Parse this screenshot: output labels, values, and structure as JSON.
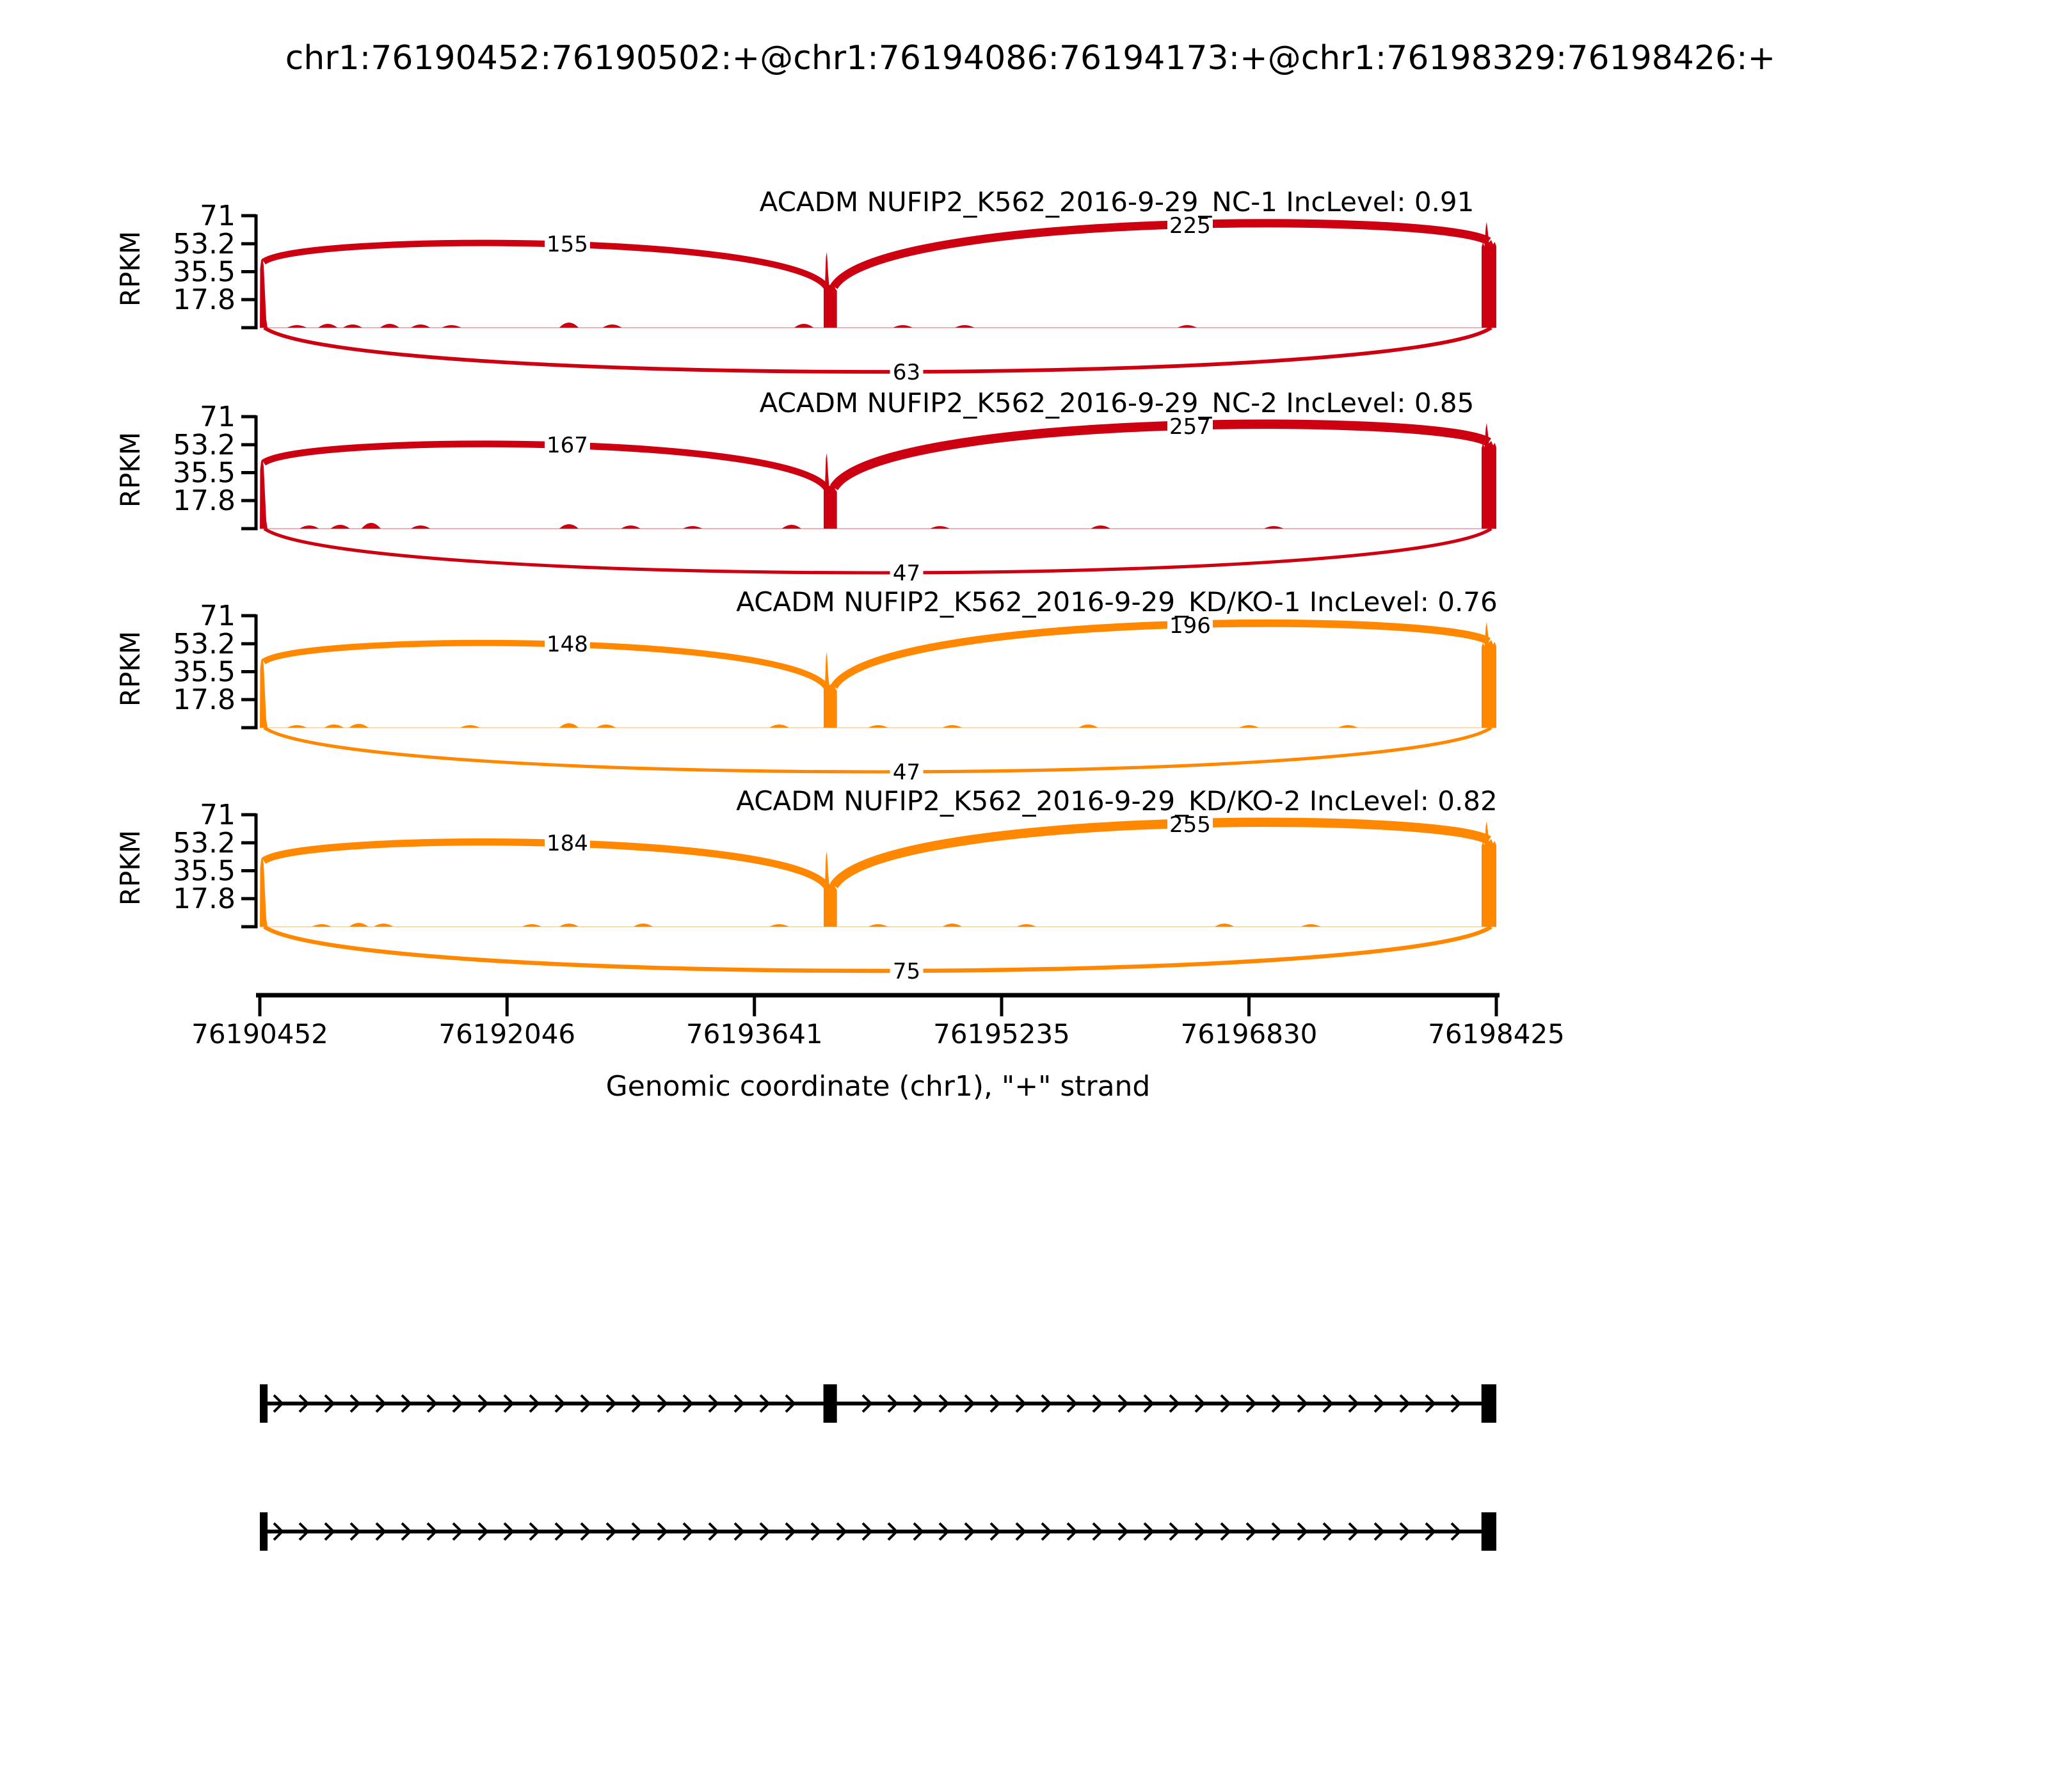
{
  "title": "chr1:76190452:76190502:+@chr1:76194086:76194173:+@chr1:76198329:76198426:+",
  "chart_data": {
    "type": "area",
    "subtype": "sashimi-splice-junction-plot",
    "title": "chr1:76190452:76190502:+@chr1:76194086:76194173:+@chr1:76198329:76198426:+",
    "ylabel": "RPKM",
    "xlabel": "Genomic coordinate (chr1), \"+\" strand",
    "y_ticks": [
      "71",
      "53.2",
      "35.5",
      "17.8"
    ],
    "y_max": 71,
    "x_ticks": [
      76190452,
      76192046,
      76193641,
      76195235,
      76196830,
      76198425
    ],
    "region": {
      "chrom": "chr1",
      "strand": "+",
      "start": 76190452,
      "end": 76198425
    },
    "exons": [
      [
        76190452,
        76190502
      ],
      [
        76194086,
        76194173
      ],
      [
        76198329,
        76198426
      ]
    ],
    "colors": {
      "NC": "#CC0011",
      "KD/KO": "#FF8800"
    },
    "tracks": [
      {
        "label": "ACADM NUFIP2_K562_2016-9-29_NC-1 IncLevel: 0.91",
        "group": "NC",
        "inc_level": 0.91,
        "color": "#CC0011",
        "junctions": [
          {
            "count": 155,
            "from_exon": 0,
            "to_exon": 1,
            "side": "top",
            "arc_peak_rpkm": 53.2
          },
          {
            "count": 225,
            "from_exon": 1,
            "to_exon": 2,
            "side": "top",
            "arc_peak_rpkm": 65
          },
          {
            "count": 63,
            "from_exon": 0,
            "to_exon": 2,
            "side": "bottom",
            "arc_peak_rpkm": -28
          }
        ],
        "coverage": {
          "blocks": [
            44,
            27,
            54
          ],
          "spikes": [
            44,
            48,
            67
          ]
        },
        "noise": [
          [
            0.03,
            4
          ],
          [
            0.055,
            6
          ],
          [
            0.075,
            5
          ],
          [
            0.105,
            6
          ],
          [
            0.13,
            5
          ],
          [
            0.155,
            4
          ],
          [
            0.25,
            8
          ],
          [
            0.285,
            5
          ],
          [
            0.44,
            6
          ],
          [
            0.52,
            4
          ],
          [
            0.57,
            4
          ],
          [
            0.75,
            4
          ]
        ]
      },
      {
        "label": "ACADM NUFIP2_K562_2016-9-29_NC-2 IncLevel: 0.85",
        "group": "NC",
        "inc_level": 0.85,
        "color": "#CC0011",
        "junctions": [
          {
            "count": 167,
            "from_exon": 0,
            "to_exon": 1,
            "side": "top",
            "arc_peak_rpkm": 53.2
          },
          {
            "count": 257,
            "from_exon": 1,
            "to_exon": 2,
            "side": "top",
            "arc_peak_rpkm": 65
          },
          {
            "count": 47,
            "from_exon": 0,
            "to_exon": 2,
            "side": "bottom",
            "arc_peak_rpkm": -28
          }
        ],
        "coverage": {
          "blocks": [
            44,
            27,
            54
          ],
          "spikes": [
            44,
            48,
            67
          ]
        },
        "noise": [
          [
            0.04,
            5
          ],
          [
            0.065,
            6
          ],
          [
            0.09,
            9
          ],
          [
            0.13,
            5
          ],
          [
            0.25,
            7
          ],
          [
            0.3,
            5
          ],
          [
            0.35,
            4
          ],
          [
            0.43,
            6
          ],
          [
            0.55,
            4
          ],
          [
            0.68,
            5
          ],
          [
            0.82,
            4
          ]
        ]
      },
      {
        "label": "ACADM NUFIP2_K562_2016-9-29_KD/KO-1 IncLevel: 0.76",
        "group": "KD/KO",
        "inc_level": 0.76,
        "color": "#FF8800",
        "junctions": [
          {
            "count": 148,
            "from_exon": 0,
            "to_exon": 1,
            "side": "top",
            "arc_peak_rpkm": 53.2
          },
          {
            "count": 196,
            "from_exon": 1,
            "to_exon": 2,
            "side": "top",
            "arc_peak_rpkm": 65
          },
          {
            "count": 47,
            "from_exon": 0,
            "to_exon": 2,
            "side": "bottom",
            "arc_peak_rpkm": -28
          }
        ],
        "coverage": {
          "blocks": [
            44,
            27,
            54
          ],
          "spikes": [
            44,
            48,
            67
          ]
        },
        "noise": [
          [
            0.03,
            4
          ],
          [
            0.06,
            5
          ],
          [
            0.08,
            6
          ],
          [
            0.17,
            4
          ],
          [
            0.25,
            7
          ],
          [
            0.28,
            5
          ],
          [
            0.42,
            5
          ],
          [
            0.5,
            4
          ],
          [
            0.56,
            4
          ],
          [
            0.67,
            5
          ],
          [
            0.8,
            4
          ],
          [
            0.88,
            4
          ]
        ]
      },
      {
        "label": "ACADM NUFIP2_K562_2016-9-29_KD/KO-2 IncLevel: 0.82",
        "group": "KD/KO",
        "inc_level": 0.82,
        "color": "#FF8800",
        "junctions": [
          {
            "count": 184,
            "from_exon": 0,
            "to_exon": 1,
            "side": "top",
            "arc_peak_rpkm": 53.2
          },
          {
            "count": 255,
            "from_exon": 1,
            "to_exon": 2,
            "side": "top",
            "arc_peak_rpkm": 65
          },
          {
            "count": 75,
            "from_exon": 0,
            "to_exon": 2,
            "side": "bottom",
            "arc_peak_rpkm": -28
          }
        ],
        "coverage": {
          "blocks": [
            44,
            27,
            54
          ],
          "spikes": [
            44,
            48,
            67
          ]
        },
        "noise": [
          [
            0.05,
            4
          ],
          [
            0.08,
            6
          ],
          [
            0.1,
            5
          ],
          [
            0.22,
            4
          ],
          [
            0.25,
            5
          ],
          [
            0.31,
            5
          ],
          [
            0.42,
            4
          ],
          [
            0.5,
            4
          ],
          [
            0.56,
            5
          ],
          [
            0.62,
            4
          ],
          [
            0.78,
            5
          ],
          [
            0.85,
            4
          ]
        ]
      }
    ],
    "transcripts": [
      {
        "exons": [
          [
            76190452,
            76190502
          ],
          [
            76194086,
            76194173
          ],
          [
            76198329,
            76198426
          ]
        ]
      },
      {
        "exons": [
          [
            76190452,
            76190502
          ],
          [
            76198329,
            76198426
          ]
        ]
      }
    ]
  }
}
